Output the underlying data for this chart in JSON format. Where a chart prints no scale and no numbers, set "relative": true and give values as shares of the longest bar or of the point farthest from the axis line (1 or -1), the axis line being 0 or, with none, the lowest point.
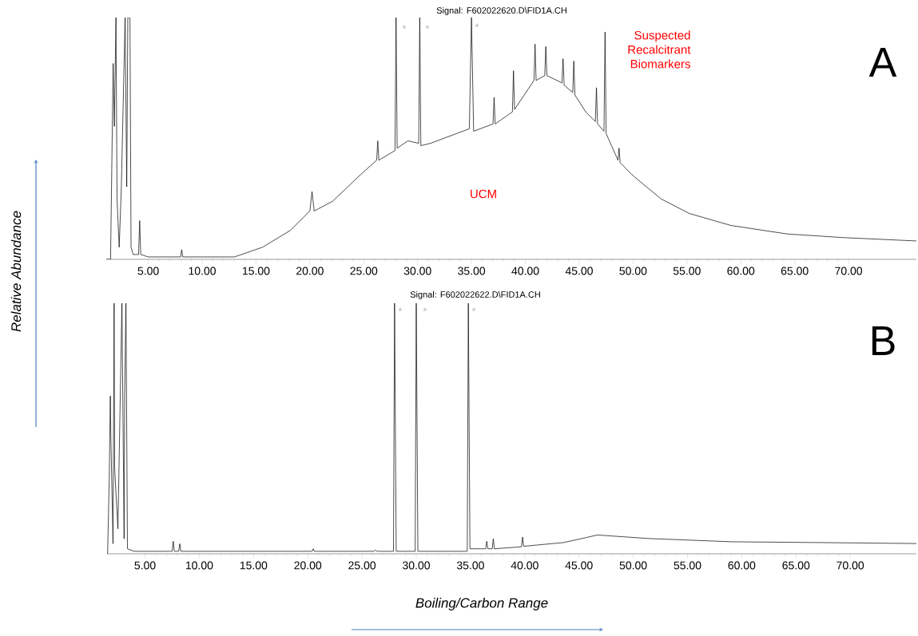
{
  "chart_data": [
    {
      "type": "line",
      "relative": true,
      "tick_labels": "x",
      "ylabel": "Relative Abundance",
      "xlim": [
        1.1,
        76.3
      ],
      "xticks": [
        {
          "value": 5,
          "label": "5.00"
        },
        {
          "value": 10,
          "label": "10.00"
        },
        {
          "value": 15,
          "label": "15.00"
        },
        {
          "value": 20,
          "label": "20.00"
        },
        {
          "value": 25,
          "label": "25.00"
        },
        {
          "value": 30,
          "label": "30.00"
        },
        {
          "value": 35,
          "label": "35.00"
        },
        {
          "value": 40,
          "label": "40.00"
        },
        {
          "value": 45,
          "label": "45.00"
        },
        {
          "value": 50,
          "label": "50.00"
        },
        {
          "value": 55,
          "label": "55.00"
        },
        {
          "value": 60,
          "label": "60.00"
        },
        {
          "value": 65,
          "label": "65.00"
        },
        {
          "value": 70,
          "label": "70.00"
        }
      ],
      "annotations": [
        "Signal: F602022620.D\\FID1A.CH",
        "Suspected Recalcitrant Biomarkers",
        "A",
        "*",
        "*",
        "*",
        "UCM"
      ],
      "series": [
        {
          "color": "#000000",
          "x": [
            1.1,
            1.5,
            1.74,
            1.85,
            2.0,
            2.1,
            2.3,
            2.5,
            2.85,
            3.0,
            3.1,
            3.3,
            3.4,
            3.6,
            4.1,
            4.2,
            4.3,
            5,
            8,
            8.1,
            8.2,
            13,
            15.6,
            18.2,
            20.0,
            20.2,
            20.4,
            22.1,
            24.7,
            26.2,
            26.3,
            26.4,
            27.9,
            28.0,
            28.1,
            29.1,
            30.1,
            30.2,
            30.3,
            31.2,
            34.8,
            35.0,
            35.2,
            37.0,
            37.1,
            37.2,
            38.8,
            38.9,
            39.0,
            40.8,
            40.9,
            41.0,
            41.8,
            41.9,
            42.0,
            43.4,
            43.5,
            43.6,
            44.4,
            44.5,
            44.6,
            45.6,
            46.5,
            46.6,
            46.7,
            47.3,
            47.4,
            47.5,
            48.0,
            48.6,
            48.7,
            48.8,
            49.9,
            50.7,
            52.6,
            55.2,
            59.1,
            64.3,
            69.5,
            76.3
          ],
          "values": [
            0,
            0,
            0.81,
            0.55,
            1,
            0.25,
            0.05,
            0.3,
            1,
            0.3,
            1,
            1,
            0.05,
            0.02,
            0.02,
            0.16,
            0.02,
            0.01,
            0.01,
            0.04,
            0.01,
            0.01,
            0.05,
            0.12,
            0.2,
            0.28,
            0.2,
            0.24,
            0.35,
            0.41,
            0.49,
            0.41,
            0.45,
            1,
            0.46,
            0.49,
            0.48,
            1,
            0.47,
            0.48,
            0.54,
            1,
            0.53,
            0.56,
            0.67,
            0.56,
            0.61,
            0.78,
            0.62,
            0.74,
            0.89,
            0.74,
            0.76,
            0.88,
            0.76,
            0.73,
            0.83,
            0.72,
            0.69,
            0.82,
            0.68,
            0.61,
            0.57,
            0.71,
            0.56,
            0.53,
            0.94,
            0.52,
            0.47,
            0.41,
            0.46,
            0.4,
            0.35,
            0.32,
            0.25,
            0.19,
            0.14,
            0.105,
            0.09,
            0.076
          ]
        }
      ]
    },
    {
      "type": "line",
      "relative": true,
      "tick_labels": "x",
      "xlabel": "Boiling/Carbon Range",
      "xlim": [
        1.5,
        76.1
      ],
      "xticks": [
        {
          "value": 5,
          "label": "5.00"
        },
        {
          "value": 10,
          "label": "10.00"
        },
        {
          "value": 15,
          "label": "15.00"
        },
        {
          "value": 20,
          "label": "20.00"
        },
        {
          "value": 25,
          "label": "25.00"
        },
        {
          "value": 30,
          "label": "30.00"
        },
        {
          "value": 35,
          "label": "35.00"
        },
        {
          "value": 40,
          "label": "40.00"
        },
        {
          "value": 45,
          "label": "45.00"
        },
        {
          "value": 50,
          "label": "50.00"
        },
        {
          "value": 55,
          "label": "55.00"
        },
        {
          "value": 60,
          "label": "60.00"
        },
        {
          "value": 65,
          "label": "65.00"
        },
        {
          "value": 70,
          "label": "70.00"
        }
      ],
      "annotations": [
        "Signal: F602022622.D\\FID1A.CH",
        "B",
        "*",
        "*",
        "*"
      ],
      "series": [
        {
          "color": "#000000",
          "x": [
            1.55,
            1.7,
            1.8,
            1.85,
            2.05,
            2.15,
            2.2,
            2.5,
            2.87,
            3.07,
            3.12,
            3.24,
            3.38,
            4,
            7.5,
            7.6,
            7.7,
            8.1,
            8.2,
            8.3,
            20.4,
            20.5,
            20.6,
            26.1,
            26.2,
            26.4,
            27.9,
            28.0,
            28.15,
            29.9,
            30.0,
            30.15,
            34.7,
            34.8,
            34.95,
            36.4,
            36.5,
            36.6,
            37.0,
            37.1,
            37.2,
            39.7,
            39.8,
            39.9,
            43.6,
            46.7,
            51.4,
            59.1,
            66.8,
            76.1
          ],
          "values": [
            0,
            0.3,
            0.63,
            0.47,
            0.04,
            1,
            0.34,
            0.1,
            1,
            0.06,
            0.63,
            1,
            0.02,
            0.01,
            0.01,
            0.05,
            0.01,
            0.01,
            0.04,
            0.01,
            0.01,
            0.02,
            0.01,
            0.01,
            0.015,
            0.01,
            0.01,
            1,
            0.01,
            0.01,
            1,
            0.01,
            0.01,
            1,
            0.02,
            0.02,
            0.05,
            0.02,
            0.02,
            0.06,
            0.02,
            0.028,
            0.067,
            0.03,
            0.045,
            0.075,
            0.061,
            0.048,
            0.045,
            0.041
          ]
        }
      ]
    }
  ]
}
